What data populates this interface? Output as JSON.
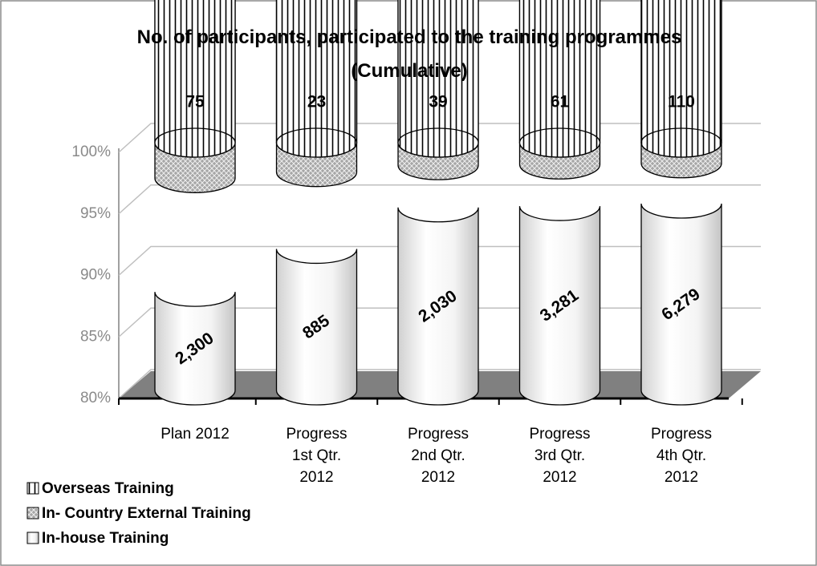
{
  "chart_data": {
    "type": "stacked_percent_cylinder",
    "title": "No. of participants, participated to the training programmes (Cumulative)",
    "categories": [
      "Plan 2012",
      "Progress\n1st Qtr.\n2012",
      "Progress\n2nd Qtr.\n2012",
      "Progress\n3rd Qtr.\n2012",
      "Progress\n4th Qtr.\n2012"
    ],
    "series": [
      {
        "name": "In-house Training",
        "color": "#ffffff",
        "pattern": "plain",
        "values": [
          2300,
          885,
          2030,
          3281,
          6279
        ],
        "value_labels": [
          "2,300",
          "885",
          "2,030",
          "3,281",
          "6,279"
        ]
      },
      {
        "name": "In- Country External Training",
        "color": "#a6a6a6",
        "pattern": "crosshatch",
        "values": [
          240,
          60,
          73,
          116,
          215
        ]
      },
      {
        "name": "Overseas Training",
        "color": "#ffffff",
        "pattern": "vertical-stripes",
        "values": [
          75,
          23,
          39,
          61,
          110
        ]
      }
    ],
    "ylim": [
      80,
      100
    ],
    "yticks": [
      {
        "value": 80,
        "label": "80%"
      },
      {
        "value": 85,
        "label": "85%"
      },
      {
        "value": 90,
        "label": "90%"
      },
      {
        "value": 95,
        "label": "95%"
      },
      {
        "value": 100,
        "label": "100%"
      }
    ],
    "grid": true,
    "legend": "bottom-left"
  }
}
